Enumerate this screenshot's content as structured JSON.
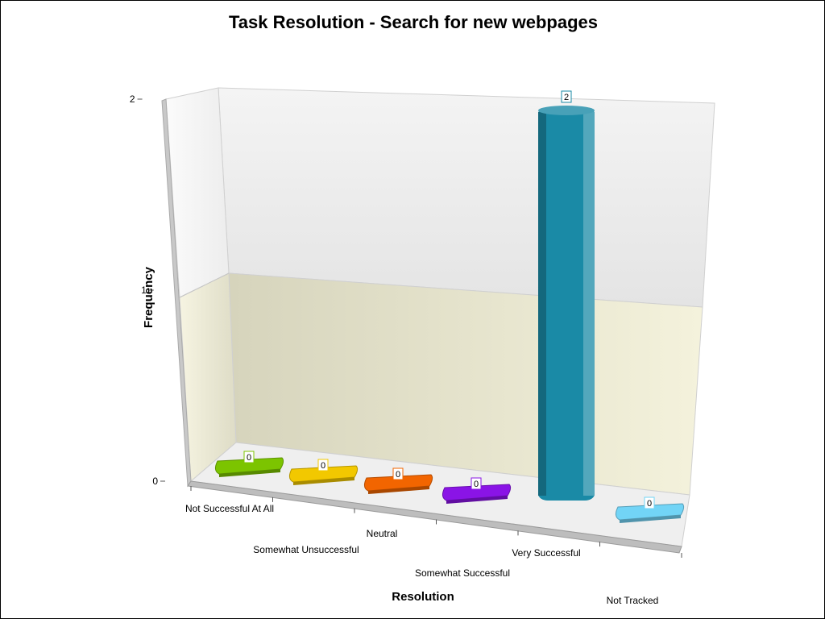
{
  "chart_data": {
    "type": "bar",
    "title": "Task Resolution - Search for new webpages",
    "xlabel": "Resolution",
    "ylabel": "Frequency",
    "categories": [
      "Not Successful At All",
      "Somewhat Unsuccessful",
      "Neutral",
      "Somewhat Successful",
      "Very Successful",
      "Not Tracked"
    ],
    "values": [
      0,
      0,
      0,
      0,
      2,
      0
    ],
    "colors": [
      "#7cc400",
      "#f2c800",
      "#f26500",
      "#8a14e6",
      "#1a8aa6",
      "#72d4f6"
    ],
    "label_colors": [
      "#7cc400",
      "#f2c800",
      "#f26500",
      "#8a14e6",
      "#1a8aa6",
      "#72d4f6"
    ],
    "ylim": [
      0,
      2
    ],
    "yticks": [
      0,
      1,
      2
    ],
    "grid": true,
    "style": "3d"
  }
}
